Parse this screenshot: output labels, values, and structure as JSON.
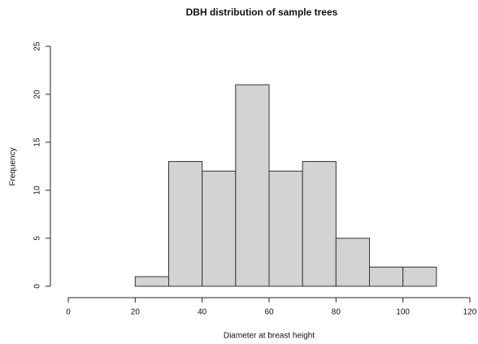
{
  "chart_data": {
    "type": "histogram",
    "title": "DBH distribution of sample trees",
    "x_label": "Diameter at breast height",
    "y_label": "Frequency",
    "bins": [
      20,
      30,
      40,
      50,
      60,
      70,
      80,
      90,
      100,
      110
    ],
    "values": [
      1,
      13,
      12,
      21,
      12,
      13,
      5,
      2,
      2
    ],
    "color": "#d3d3d3",
    "xlim": [
      0,
      120
    ],
    "xticks": [
      0,
      20,
      40,
      60,
      80,
      100,
      120
    ],
    "ylim": [
      0,
      25
    ],
    "yticks": [
      0,
      5,
      10,
      15,
      20,
      25
    ]
  }
}
